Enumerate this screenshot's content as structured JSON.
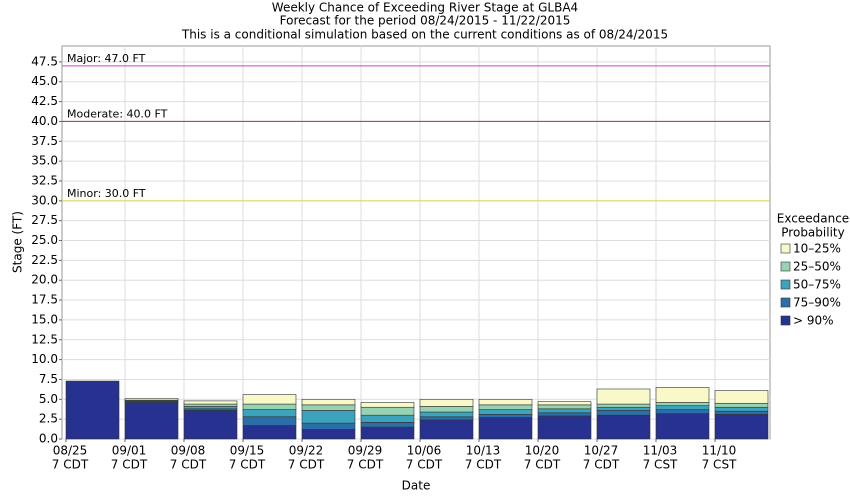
{
  "chart_data": {
    "type": "stacked-bar",
    "title": "Weekly Chance of Exceeding River Stage at GLBA4",
    "subtitle": "Forecast for the period 08/24/2015 - 11/22/2015",
    "subtitle2": "This is a conditional simulation based on the current conditions as of 08/24/2015",
    "y_label": "Stage (FT)",
    "x_label": "Date",
    "legend_title": [
      "Exceedance",
      "Probability"
    ],
    "categories": [
      [
        "08/25",
        "7 CDT"
      ],
      [
        "09/01",
        "7 CDT"
      ],
      [
        "09/08",
        "7 CDT"
      ],
      [
        "09/15",
        "7 CDT"
      ],
      [
        "09/22",
        "7 CDT"
      ],
      [
        "09/29",
        "7 CDT"
      ],
      [
        "10/06",
        "7 CDT"
      ],
      [
        "10/13",
        "7 CDT"
      ],
      [
        "10/20",
        "7 CDT"
      ],
      [
        "10/27",
        "7 CDT"
      ],
      [
        "11/03",
        "7 CST"
      ],
      [
        "11/10",
        "7 CST"
      ]
    ],
    "series": [
      {
        "name": "> 90%",
        "color": "#27318f",
        "values": [
          7.3,
          4.6,
          3.6,
          1.7,
          1.2,
          1.5,
          2.4,
          2.7,
          2.9,
          3.0,
          3.2,
          3.1
        ]
      },
      {
        "name": "75–90%",
        "color": "#2c6ea8",
        "values": [
          0,
          0.1,
          0.2,
          1.1,
          0.8,
          0.6,
          0.4,
          0.4,
          0.4,
          0.6,
          0.5,
          0.4
        ]
      },
      {
        "name": "50–75%",
        "color": "#3da3bd",
        "values": [
          0,
          0.1,
          0.3,
          0.9,
          1.6,
          0.9,
          0.6,
          0.6,
          0.5,
          0.4,
          0.5,
          0.5
        ]
      },
      {
        "name": "25–50%",
        "color": "#96d3b2",
        "values": [
          0,
          0.1,
          0.3,
          0.7,
          0.7,
          1.0,
          0.7,
          0.6,
          0.5,
          0.4,
          0.4,
          0.5
        ]
      },
      {
        "name": "10–25%",
        "color": "#f8f8c8",
        "values": [
          0,
          0.2,
          0.4,
          1.2,
          0.7,
          0.6,
          0.9,
          0.7,
          0.4,
          1.9,
          1.9,
          1.6
        ]
      }
    ],
    "thresholds": [
      {
        "label": "Major: 47.0 FT",
        "value": 47,
        "color": "#d23fd2"
      },
      {
        "label": "Moderate: 40.0 FT",
        "value": 40,
        "color": "#c62828"
      },
      {
        "label": "Minor: 30.0 FT",
        "value": 30,
        "color": "#e3d34a"
      }
    ],
    "ylim": [
      0,
      49.5
    ],
    "yticks": [
      {
        "value": 0,
        "label": "0.0"
      },
      2.5,
      {
        "value": 5,
        "label": "5.0"
      },
      7.5,
      {
        "value": 10,
        "label": "10.0"
      },
      12.5,
      {
        "value": 15,
        "label": "15.0"
      },
      17.5,
      {
        "value": 20,
        "label": "20.0"
      },
      22.5,
      {
        "value": 25,
        "label": "25.0"
      },
      27.5,
      {
        "value": 30,
        "label": "30.0"
      },
      32.5,
      {
        "value": 35,
        "label": "35.0"
      },
      37.5,
      {
        "value": 40,
        "label": "40.0"
      },
      42.5,
      {
        "value": 45,
        "label": "45.0"
      },
      47.5
    ],
    "grid": true
  }
}
